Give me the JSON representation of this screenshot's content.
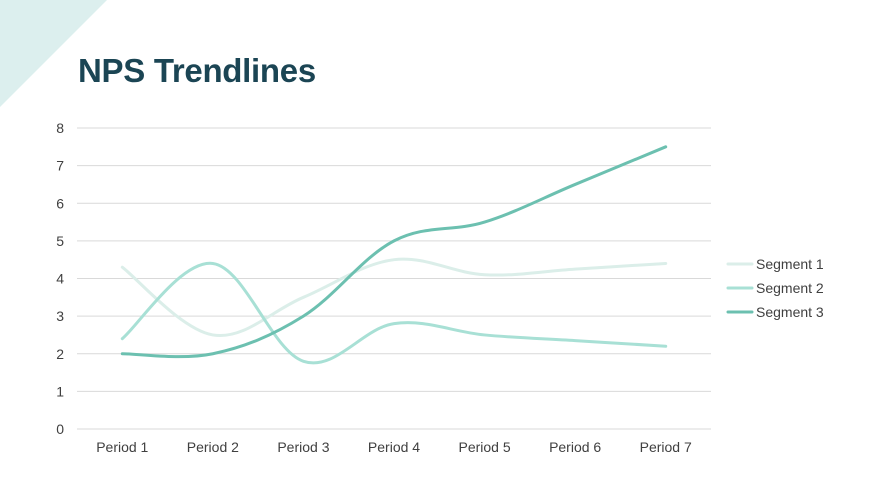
{
  "title": "NPS Trendlines",
  "colors": {
    "background": "#ffffff",
    "title": "#1b4554",
    "accent_shape": "#dcefee",
    "gridline": "#d9d9d9",
    "axis_text": "#404040"
  },
  "chart_data": {
    "type": "line",
    "smooth": true,
    "title": "",
    "xlabel": "",
    "ylabel": "",
    "categories": [
      "Period 1",
      "Period 2",
      "Period 3",
      "Period 4",
      "Period 5",
      "Period 6",
      "Period 7"
    ],
    "ylim": [
      0,
      8
    ],
    "yticks": [
      "0",
      "1",
      "2",
      "3",
      "4",
      "5",
      "6",
      "7",
      "8"
    ],
    "grid": true,
    "legend_position": "right",
    "series": [
      {
        "name": "Segment 1",
        "color": "#dbeee9",
        "values": [
          4.3,
          2.5,
          3.5,
          4.5,
          4.1,
          4.25,
          4.4
        ]
      },
      {
        "name": "Segment 2",
        "color": "#a8e0d5",
        "values": [
          2.4,
          4.4,
          1.8,
          2.8,
          2.5,
          2.35,
          2.2
        ]
      },
      {
        "name": "Segment 3",
        "color": "#6cc0b0",
        "values": [
          2.0,
          2.0,
          3.0,
          5.0,
          5.5,
          6.5,
          7.5
        ]
      }
    ]
  }
}
